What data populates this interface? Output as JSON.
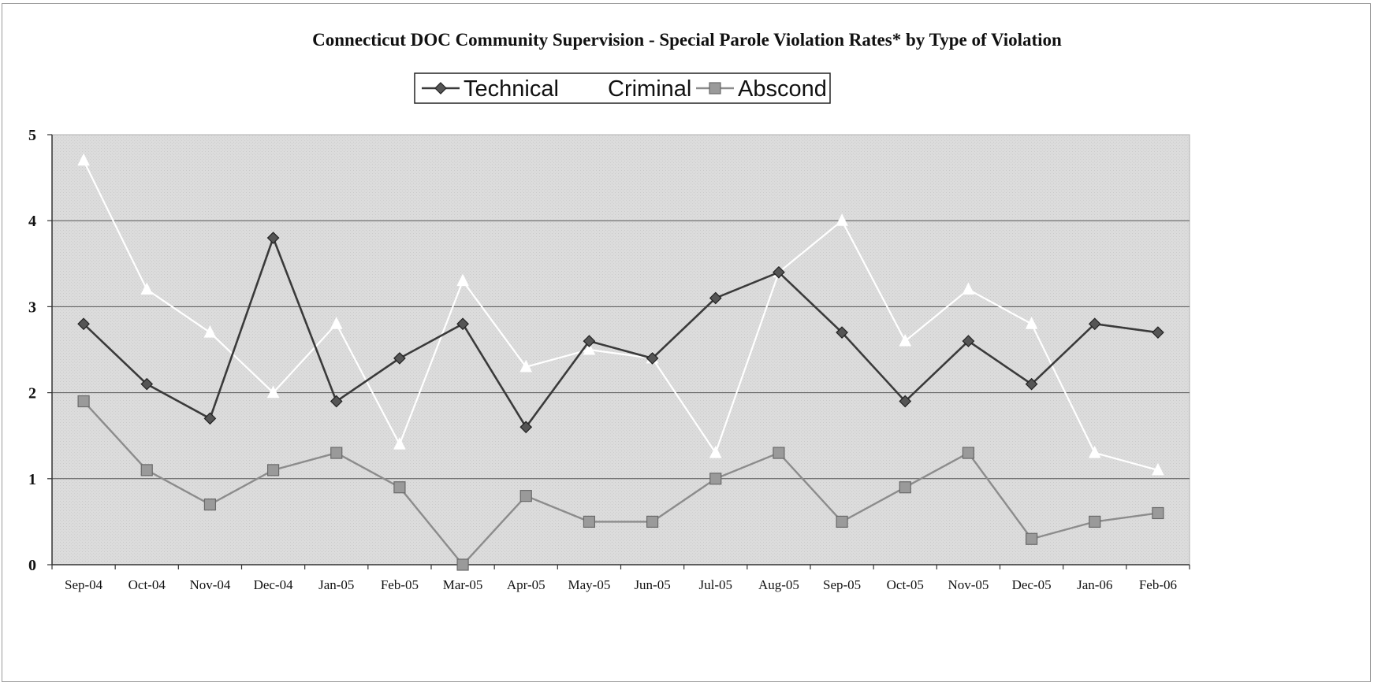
{
  "chart_data": {
    "type": "line",
    "title": "Connecticut DOC Community Supervision -  Special Parole Violation Rates* by Type of Violation",
    "xlabel": "",
    "ylabel": "",
    "ylim": [
      0,
      5
    ],
    "yticks": [
      0,
      1,
      2,
      3,
      4,
      5
    ],
    "grid": true,
    "legend_position": "top-center",
    "categories": [
      "Sep-04",
      "Oct-04",
      "Nov-04",
      "Dec-04",
      "Jan-05",
      "Feb-05",
      "Mar-05",
      "Apr-05",
      "May-05",
      "Jun-05",
      "Jul-05",
      "Aug-05",
      "Sep-05",
      "Oct-05",
      "Nov-05",
      "Dec-05",
      "Jan-06",
      "Feb-06"
    ],
    "series": [
      {
        "name": "Technical",
        "marker": "diamond",
        "color": "#3a3a3a",
        "values": [
          2.8,
          2.1,
          1.7,
          3.8,
          1.9,
          2.4,
          2.8,
          1.6,
          2.6,
          2.4,
          3.1,
          3.4,
          2.7,
          1.9,
          2.6,
          2.1,
          2.8,
          2.7
        ]
      },
      {
        "name": "Criminal",
        "marker": "triangle",
        "color": "#ffffff",
        "values": [
          4.7,
          3.2,
          2.7,
          2.0,
          2.8,
          1.4,
          3.3,
          2.3,
          2.5,
          2.4,
          1.3,
          3.4,
          4.0,
          2.6,
          3.2,
          2.8,
          1.3,
          1.1
        ]
      },
      {
        "name": "Abscond",
        "marker": "square",
        "color": "#8c8c8c",
        "values": [
          1.9,
          1.1,
          0.7,
          1.1,
          1.3,
          0.9,
          0.0,
          0.8,
          0.5,
          0.5,
          1.0,
          1.3,
          0.5,
          0.9,
          1.3,
          0.3,
          0.5,
          0.6
        ]
      }
    ]
  }
}
